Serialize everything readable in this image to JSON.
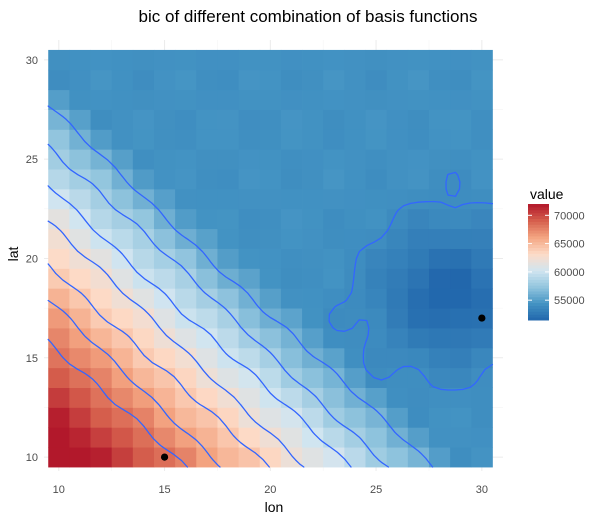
{
  "chart_data": {
    "type": "heatmap",
    "title": "bic of different combination of basis functions",
    "xlabel": "lon",
    "ylabel": "lat",
    "x_range": [
      9.5,
      30.5
    ],
    "y_range": [
      9.5,
      30.5
    ],
    "xlim": [
      9.3,
      31.0
    ],
    "ylim": [
      9.3,
      31.0
    ],
    "x_ticks": [
      10,
      15,
      20,
      25,
      30
    ],
    "y_ticks": [
      10,
      15,
      20,
      25,
      30
    ],
    "x_tick_labels": [
      "10",
      "15",
      "20",
      "25",
      "30"
    ],
    "y_tick_labels": [
      "10",
      "15",
      "20",
      "25",
      "30"
    ],
    "grid": true,
    "value_range": [
      51500,
      72000
    ],
    "legend": {
      "title": "value",
      "position": "right",
      "breaks": [
        55000,
        60000,
        65000,
        70000
      ],
      "labels": [
        "55000",
        "60000",
        "65000",
        "70000"
      ]
    },
    "palette": [
      "#b2182b",
      "#d6604d",
      "#f4a582",
      "#fddbc7",
      "#d1e5f0",
      "#92c5de",
      "#4393c3",
      "#2166ac"
    ],
    "contour_color": "#3366ff",
    "contour_levels": [
      54000,
      56000,
      58000,
      60000,
      62000,
      64000,
      66000,
      68000
    ],
    "points": [
      {
        "x": 15,
        "y": 10
      },
      {
        "x": 30,
        "y": 17
      }
    ]
  }
}
